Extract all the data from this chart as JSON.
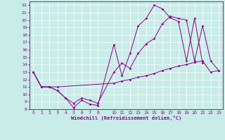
{
  "xlabel": "Windchill (Refroidissement éolien,°C)",
  "bg_color": "#c8ece8",
  "line_color": "#8b008b",
  "grid_color": "#ffffff",
  "xlim": [
    -0.5,
    23.5
  ],
  "ylim": [
    8,
    22.5
  ],
  "xticks": [
    0,
    1,
    2,
    3,
    4,
    5,
    6,
    7,
    8,
    10,
    11,
    12,
    13,
    14,
    15,
    16,
    17,
    18,
    19,
    20,
    21,
    22,
    23
  ],
  "yticks": [
    8,
    9,
    10,
    11,
    12,
    13,
    14,
    15,
    16,
    17,
    18,
    19,
    20,
    21,
    22
  ],
  "line1_x": [
    0,
    1,
    2,
    3,
    4,
    5,
    6,
    7,
    8,
    10,
    11,
    12,
    13,
    14,
    15,
    16,
    17,
    18,
    19,
    20,
    21
  ],
  "line1_y": [
    13,
    11,
    11,
    10.5,
    9.5,
    8.2,
    9.2,
    8.7,
    8.5,
    16.7,
    12.5,
    15.5,
    19.2,
    20.2,
    22,
    21.5,
    20.3,
    19.8,
    14.5,
    20.2,
    14.2
  ],
  "line2_x": [
    0,
    1,
    2,
    3,
    4,
    5,
    6,
    7,
    8,
    10,
    11,
    12,
    13,
    14,
    15,
    16,
    17,
    18,
    19,
    20,
    21,
    22,
    23
  ],
  "line2_y": [
    13,
    11,
    11,
    10.5,
    9.5,
    8.8,
    9.5,
    9.2,
    8.8,
    13,
    14.2,
    13.5,
    15.5,
    16.8,
    17.5,
    19.5,
    20.5,
    20.2,
    20,
    14.5,
    19.2,
    14.5,
    13.2
  ],
  "line3_x": [
    0,
    1,
    2,
    3,
    10,
    11,
    12,
    13,
    14,
    15,
    16,
    17,
    18,
    19,
    20,
    21,
    22,
    23
  ],
  "line3_y": [
    13,
    11,
    11,
    11,
    11.5,
    11.8,
    12,
    12.3,
    12.5,
    12.8,
    13.2,
    13.5,
    13.8,
    14.0,
    14.3,
    14.5,
    13,
    13.2
  ]
}
